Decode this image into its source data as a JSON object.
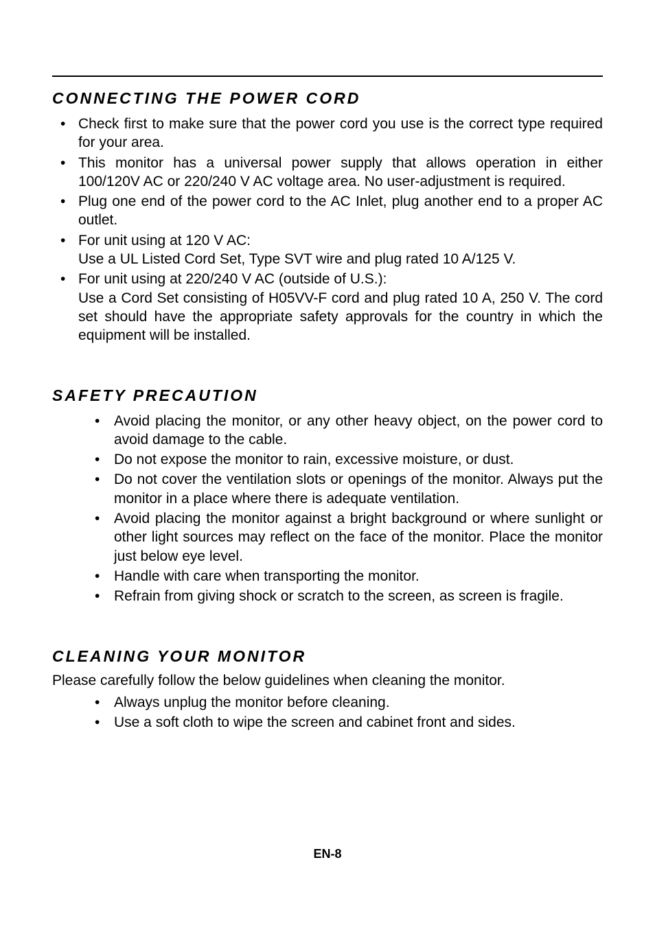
{
  "section1": {
    "heading": "CONNECTING THE POWER CORD",
    "items": [
      "Check first to make sure that the power cord you use is the correct type required for your area.",
      "This monitor has a universal power supply that allows operation in either 100/120V AC or 220/240 V AC voltage area. No user-adjustment is required.",
      "Plug one end of the power cord to the AC Inlet, plug another end to a proper AC outlet.",
      "For unit using at 120 V AC:\nUse a UL Listed Cord Set, Type SVT wire and plug rated 10 A/125 V.",
      "For unit using at 220/240 V AC (outside of U.S.):\nUse a Cord Set consisting of H05VV-F cord and plug rated 10 A, 250 V. The cord set should have the appropriate safety approvals for the country in which the equipment will be installed."
    ]
  },
  "section2": {
    "heading": "SAFETY PRECAUTION",
    "items": [
      "Avoid placing the monitor, or any other heavy object, on the power cord to avoid damage to the cable.",
      "Do not expose the monitor to rain, excessive moisture, or dust.",
      "Do not cover the ventilation slots or openings of the monitor. Always put the monitor in a place where there is adequate ventilation.",
      "Avoid placing the monitor against a bright background or where sunlight or other light sources may reflect on the face of the monitor. Place the monitor just below eye level.",
      "Handle with care when transporting the monitor.",
      "Refrain from giving shock or scratch to the screen, as screen is fragile."
    ]
  },
  "section3": {
    "heading": "CLEANING YOUR MONITOR",
    "intro": "Please carefully follow the below guidelines when cleaning the monitor.",
    "items": [
      "Always unplug the monitor before cleaning.",
      "Use a soft cloth to wipe the screen and cabinet front and sides."
    ]
  },
  "page_num": "EN-8",
  "colors": {
    "background": "#ffffff",
    "text": "#000000",
    "rule": "#000000"
  },
  "typography": {
    "heading_fontsize": 23,
    "body_fontsize": 21,
    "pagenum_fontsize": 18,
    "heading_letterspacing": 3
  }
}
